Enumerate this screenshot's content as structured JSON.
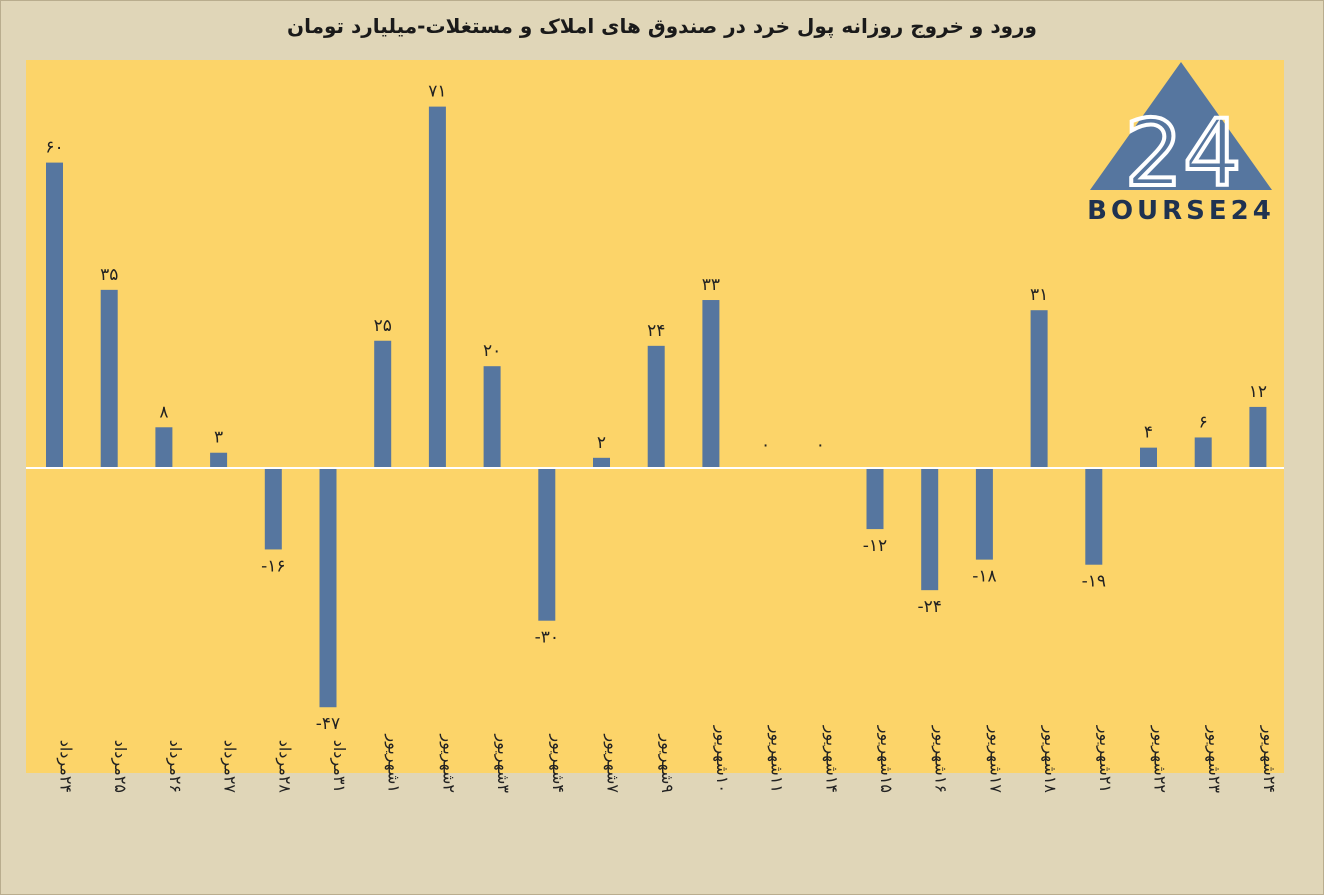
{
  "chart_data": {
    "type": "bar",
    "title": "ورود و خروج روزانه پول خرد در صندوق های املاک و مستغلات-میلیارد تومان",
    "categories": [
      "۲۴مرداد",
      "۲۵مرداد",
      "۲۶مرداد",
      "۲۷مرداد",
      "۲۸مرداد",
      "۳۱مرداد",
      "۱شهریور",
      "۲شهریور",
      "۳شهریور",
      "۴شهریور",
      "۷شهریور",
      "۹شهریور",
      "۱۰شهریور",
      "۱۱شهریور",
      "۱۴شهریور",
      "۱۵شهریور",
      "۱۶شهریور",
      "۱۷شهریور",
      "۱۸شهریور",
      "۲۱شهریور",
      "۲۲شهریور",
      "۲۳شهریور",
      "۲۴شهریور"
    ],
    "values": [
      60,
      35,
      8,
      3,
      -16,
      -47,
      25,
      71,
      20,
      -30,
      2,
      24,
      33,
      0,
      0,
      -12,
      -24,
      -18,
      31,
      -19,
      4,
      6,
      12
    ],
    "value_labels": [
      "۶۰",
      "۳۵",
      "۸",
      "۳",
      "-۱۶",
      "-۴۷",
      "۲۵",
      "۷۱",
      "۲۰",
      "-۳۰",
      "۲",
      "۲۴",
      "۳۳",
      "۰",
      "۰",
      "-۱۲",
      "-۲۴",
      "-۱۸",
      "۳۱",
      "-۱۹",
      "۴",
      "۶",
      "۱۲"
    ],
    "ylim": [
      -60,
      80
    ],
    "grid": false,
    "bar_color": "#56769f",
    "plot_background": "#fcd469"
  },
  "logo": {
    "text": "BOURSE24",
    "mark": "24",
    "color": "#56769f"
  }
}
